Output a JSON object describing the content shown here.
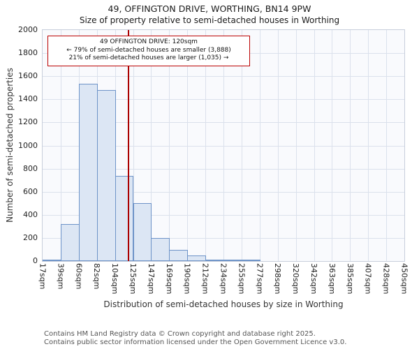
{
  "chart_data": {
    "type": "bar",
    "title": "49, OFFINGTON DRIVE, WORTHING, BN14 9PW",
    "subtitle": "Size of property relative to semi-detached houses in Worthing",
    "xlabel": "Distribution of semi-detached houses by size in Worthing",
    "ylabel": "Number of semi-detached properties",
    "ylim": [
      0,
      2000
    ],
    "ytick_step": 200,
    "grid": true,
    "legend": "none",
    "bin_edges": [
      17,
      39,
      60,
      82,
      104,
      125,
      147,
      169,
      190,
      212,
      234,
      255,
      277,
      298,
      320,
      342,
      363,
      385,
      407,
      428,
      450
    ],
    "tick_labels": [
      "17sqm",
      "39sqm",
      "60sqm",
      "82sqm",
      "104sqm",
      "125sqm",
      "147sqm",
      "169sqm",
      "190sqm",
      "212sqm",
      "234sqm",
      "255sqm",
      "277sqm",
      "298sqm",
      "320sqm",
      "342sqm",
      "363sqm",
      "385sqm",
      "407sqm",
      "428sqm",
      "450sqm"
    ],
    "values": [
      10,
      320,
      1535,
      1480,
      740,
      500,
      200,
      95,
      50,
      15,
      8,
      5,
      0,
      0,
      0,
      0,
      0,
      0,
      0,
      0
    ],
    "marker": {
      "value": 120,
      "label": "120sqm"
    },
    "colors": {
      "bar_fill": "#dce6f4",
      "bar_border": "#6d93c8",
      "grid": "#dbe1ec",
      "plot_bg": "#f9fafd",
      "marker": "#aa0000",
      "annotation_border": "#bb0000"
    }
  },
  "annotation": {
    "line1": "49 OFFINGTON DRIVE: 120sqm",
    "line2": "← 79% of semi-detached houses are smaller (3,888)",
    "line3": "21% of semi-detached houses are larger (1,035) →"
  },
  "footer": {
    "line1": "Contains HM Land Registry data © Crown copyright and database right 2025.",
    "line2": "Contains public sector information licensed under the Open Government Licence v3.0."
  }
}
